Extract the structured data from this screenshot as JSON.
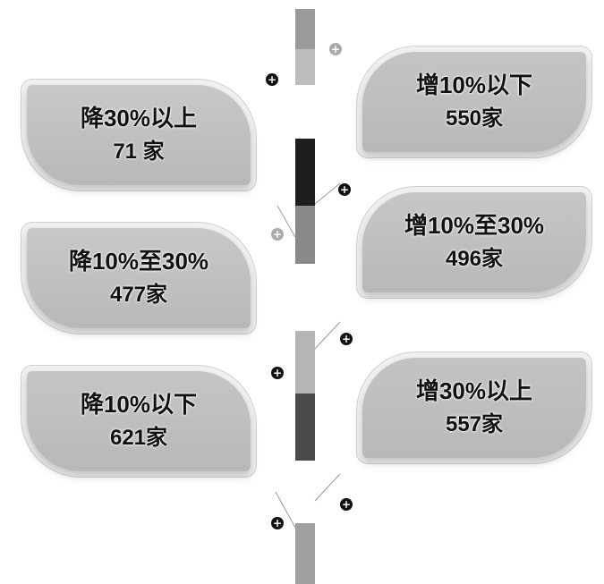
{
  "pole": {
    "segments": [
      {
        "color": "#9a9a9a"
      },
      {
        "color": "#bdbdbd"
      },
      {
        "color": "#ffffff"
      },
      {
        "color": "#1e1e1e"
      },
      {
        "color": "#8a8a8a"
      },
      {
        "color": "#ffffff"
      },
      {
        "color": "#b5b5b5"
      },
      {
        "color": "#4a4a4a"
      },
      {
        "color": "#ffffff"
      },
      {
        "color": "#a0a0a0"
      }
    ]
  },
  "cards": [
    {
      "label": "降30%以上",
      "value": "71 家",
      "side": "left",
      "color": "#c8c8c8"
    },
    {
      "label": "增10%以下",
      "value": "550家",
      "side": "right",
      "color": "#c4c4c4"
    },
    {
      "label": "降10%至30%",
      "value": "477家",
      "side": "left",
      "color": "#c8c8c8"
    },
    {
      "label": "增10%至30%",
      "value": "496家",
      "side": "right",
      "color": "#c6c6c6"
    },
    {
      "label": "降10%以下",
      "value": "621家",
      "side": "left",
      "color": "#c5c5c5"
    },
    {
      "label": "增30%以上",
      "value": "557家",
      "side": "right",
      "color": "#c3c3c3"
    }
  ],
  "pins": [
    {
      "icon": "plus-icon",
      "style": "dark"
    },
    {
      "icon": "plus-icon",
      "style": "light"
    },
    {
      "icon": "plus-icon",
      "style": "dark"
    },
    {
      "icon": "plus-icon",
      "style": "light"
    },
    {
      "icon": "plus-icon",
      "style": "dark"
    },
    {
      "icon": "plus-icon",
      "style": "dark"
    },
    {
      "icon": "plus-icon",
      "style": "dark"
    },
    {
      "icon": "plus-icon",
      "style": "dark"
    }
  ]
}
